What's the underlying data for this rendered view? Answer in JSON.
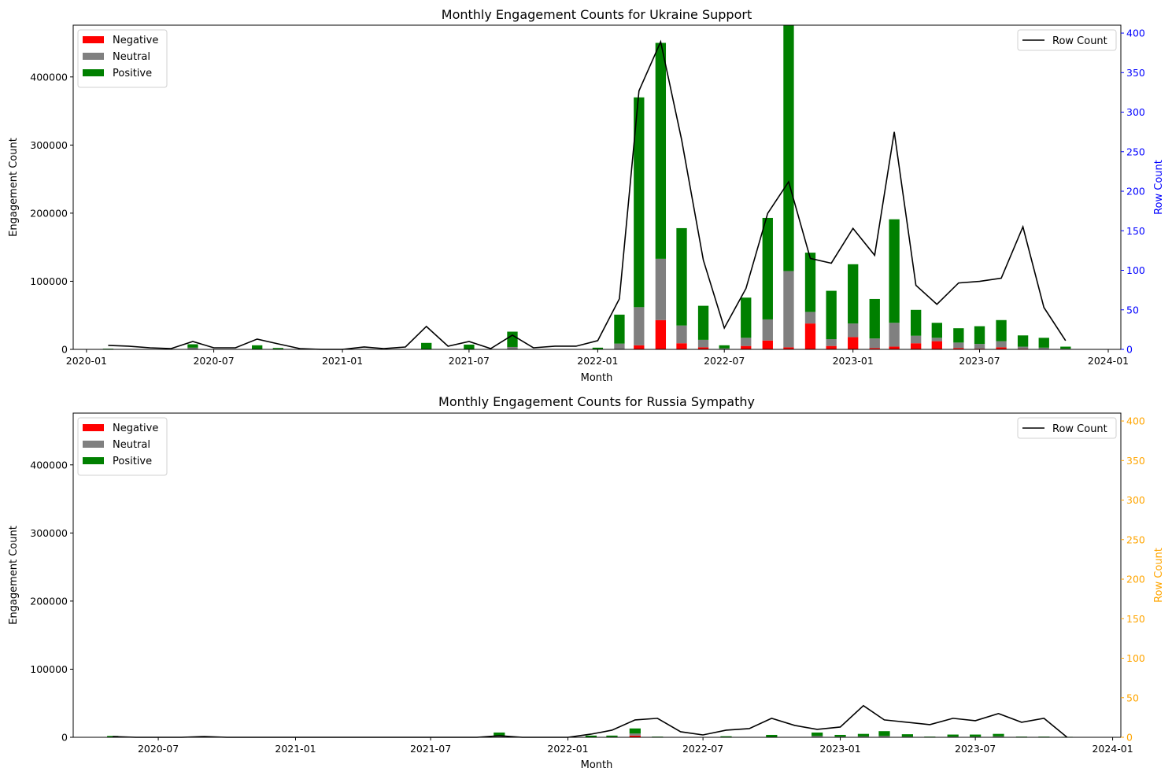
{
  "chart_data": [
    {
      "type": "bar",
      "title": "Monthly Engagement Counts for Ukraine Support",
      "xlabel": "Month",
      "ylabel": "Engagement Count",
      "y2label": "Row Count",
      "y2_color": "#0000ff",
      "x_tick_labels": [
        "2020-01",
        "2020-07",
        "2021-01",
        "2021-07",
        "2022-01",
        "2022-07",
        "2023-01",
        "2023-07",
        "2024-01"
      ],
      "y_ticks": [
        0,
        100000,
        200000,
        300000,
        400000
      ],
      "y2_ticks": [
        0,
        50,
        100,
        150,
        200,
        250,
        300,
        350,
        400
      ],
      "xlim": [
        "2019-12-13",
        "2024-01-19"
      ],
      "ylim": [
        0,
        476000
      ],
      "y2lim": [
        0,
        410
      ],
      "legend_left_position": "upper-left",
      "legend_right_position": "upper-right",
      "grid": false,
      "months": [
        "2020-02-01",
        "2020-03-01",
        "2020-04-01",
        "2020-05-01",
        "2020-06-01",
        "2020-07-01",
        "2020-08-01",
        "2020-09-01",
        "2020-10-01",
        "2020-11-01",
        "2020-12-01",
        "2021-01-01",
        "2021-02-01",
        "2021-03-01",
        "2021-04-01",
        "2021-05-01",
        "2021-06-01",
        "2021-07-01",
        "2021-08-01",
        "2021-09-01",
        "2021-10-01",
        "2021-11-01",
        "2021-12-01",
        "2022-01-01",
        "2022-02-01",
        "2022-03-01",
        "2022-04-01",
        "2022-05-01",
        "2022-06-01",
        "2022-07-01",
        "2022-08-01",
        "2022-09-01",
        "2022-10-01",
        "2022-11-01",
        "2022-12-01",
        "2023-01-01",
        "2023-02-01",
        "2023-03-01",
        "2023-04-01",
        "2023-05-01",
        "2023-06-01",
        "2023-07-01",
        "2023-08-01",
        "2023-09-01",
        "2023-10-01",
        "2023-11-01"
      ],
      "series": [
        {
          "name": "Negative",
          "color": "#ff0000",
          "values": [
            0,
            0,
            0,
            0,
            500,
            0,
            0,
            0,
            0,
            0,
            0,
            0,
            0,
            0,
            0,
            0,
            0,
            0,
            0,
            500,
            0,
            0,
            0,
            0,
            500,
            6000,
            43000,
            9000,
            3000,
            500,
            5000,
            13000,
            3000,
            38000,
            5000,
            18000,
            2000,
            4000,
            9000,
            12000,
            2000,
            1000,
            3000,
            1000,
            500,
            0
          ]
        },
        {
          "name": "Neutral",
          "color": "#808080",
          "values": [
            0,
            0,
            0,
            0,
            2000,
            0,
            0,
            500,
            0,
            0,
            0,
            0,
            0,
            0,
            0,
            0,
            500,
            500,
            0,
            3000,
            0,
            0,
            0,
            500,
            8000,
            56000,
            90000,
            26000,
            11000,
            1000,
            12000,
            31000,
            112000,
            17000,
            10000,
            20000,
            14000,
            35000,
            11000,
            5000,
            8000,
            7000,
            9000,
            3000,
            2000,
            1000
          ]
        },
        {
          "name": "Positive",
          "color": "#008000",
          "values": [
            1000,
            0,
            0,
            0,
            5000,
            500,
            0,
            5500,
            2000,
            0,
            0,
            0,
            0,
            0,
            0,
            9500,
            0,
            6500,
            0,
            22500,
            500,
            500,
            500,
            2000,
            42500,
            308000,
            317000,
            143000,
            50000,
            4500,
            59000,
            149000,
            366000,
            87000,
            71000,
            87000,
            58000,
            152000,
            38000,
            22000,
            21000,
            26000,
            31000,
            16500,
            14500,
            3000
          ]
        }
      ],
      "line": {
        "name": "Row Count",
        "color": "#000000",
        "values": [
          5,
          4,
          2,
          1,
          10,
          2,
          2,
          13,
          7,
          1,
          0,
          0,
          3,
          1,
          3,
          29,
          4,
          10,
          1,
          18,
          2,
          4,
          4,
          11,
          64,
          327,
          389,
          265,
          113,
          27,
          77,
          172,
          212,
          115,
          109,
          153,
          119,
          275,
          81,
          57,
          84,
          86,
          90,
          155,
          53,
          11
        ]
      }
    },
    {
      "type": "bar",
      "title": "Monthly Engagement Counts for Russia Sympathy",
      "xlabel": "Month",
      "ylabel": "Engagement Count",
      "y2label": "Row Count",
      "y2_color": "#ffa500",
      "x_tick_labels": [
        "2020-07",
        "2021-01",
        "2021-07",
        "2022-01",
        "2022-07",
        "2023-01",
        "2023-07",
        "2024-01"
      ],
      "y_ticks": [
        0,
        100000,
        200000,
        300000,
        400000
      ],
      "y2_ticks": [
        0,
        50,
        100,
        150,
        200,
        250,
        300,
        350,
        400
      ],
      "xlim": [
        "2020-03-09",
        "2024-01-12"
      ],
      "ylim": [
        0,
        476000
      ],
      "y2lim": [
        0,
        410
      ],
      "legend_left_position": "upper-left",
      "legend_right_position": "upper-right",
      "grid": false,
      "months": [
        "2020-05-01",
        "2020-06-01",
        "2020-07-01",
        "2020-08-01",
        "2020-09-01",
        "2020-10-01",
        "2020-11-01",
        "2020-12-01",
        "2021-01-01",
        "2021-02-01",
        "2021-03-01",
        "2021-04-01",
        "2021-05-01",
        "2021-06-01",
        "2021-07-01",
        "2021-08-01",
        "2021-09-01",
        "2021-10-01",
        "2021-11-01",
        "2021-12-01",
        "2022-01-01",
        "2022-02-01",
        "2022-03-01",
        "2022-04-01",
        "2022-05-01",
        "2022-06-01",
        "2022-07-01",
        "2022-08-01",
        "2022-09-01",
        "2022-10-01",
        "2022-11-01",
        "2022-12-01",
        "2023-01-01",
        "2023-02-01",
        "2023-03-01",
        "2023-04-01",
        "2023-05-01",
        "2023-06-01",
        "2023-07-01",
        "2023-08-01",
        "2023-09-01",
        "2023-10-01",
        "2023-11-01"
      ],
      "series": [
        {
          "name": "Negative",
          "color": "#ff0000",
          "values": [
            200,
            0,
            0,
            0,
            0,
            0,
            0,
            0,
            0,
            0,
            0,
            0,
            0,
            0,
            0,
            0,
            0,
            500,
            0,
            0,
            0,
            200,
            200,
            2500,
            0,
            0,
            0,
            0,
            0,
            0,
            0,
            500,
            0,
            200,
            500,
            0,
            0,
            200,
            200,
            300,
            0,
            0,
            0
          ]
        },
        {
          "name": "Neutral",
          "color": "#808080",
          "values": [
            300,
            0,
            0,
            0,
            0,
            0,
            0,
            0,
            0,
            0,
            0,
            0,
            0,
            0,
            0,
            0,
            0,
            1500,
            0,
            0,
            0,
            300,
            500,
            3000,
            200,
            0,
            0,
            200,
            0,
            500,
            0,
            1500,
            1000,
            1200,
            1500,
            1000,
            300,
            800,
            800,
            1200,
            300,
            300,
            200
          ]
        },
        {
          "name": "Positive",
          "color": "#008000",
          "values": [
            1500,
            0,
            0,
            0,
            0,
            0,
            0,
            0,
            0,
            0,
            0,
            0,
            0,
            0,
            0,
            0,
            0,
            5000,
            0,
            0,
            0,
            2000,
            1800,
            7500,
            800,
            300,
            300,
            1300,
            300,
            3000,
            500,
            5000,
            2500,
            3600,
            7000,
            3500,
            700,
            3000,
            3000,
            3500,
            700,
            700,
            500
          ]
        }
      ],
      "line": {
        "name": "Row Count",
        "color": "#000000",
        "values": [
          1,
          0,
          0,
          0,
          1,
          0,
          0,
          0,
          0,
          0,
          0,
          0,
          0,
          0,
          0,
          0,
          0,
          2,
          0,
          0,
          0,
          4,
          9,
          22,
          24,
          7,
          3,
          9,
          11,
          24,
          15,
          10,
          13,
          40,
          22,
          19,
          16,
          24,
          21,
          30,
          19,
          24,
          0
        ]
      }
    }
  ]
}
